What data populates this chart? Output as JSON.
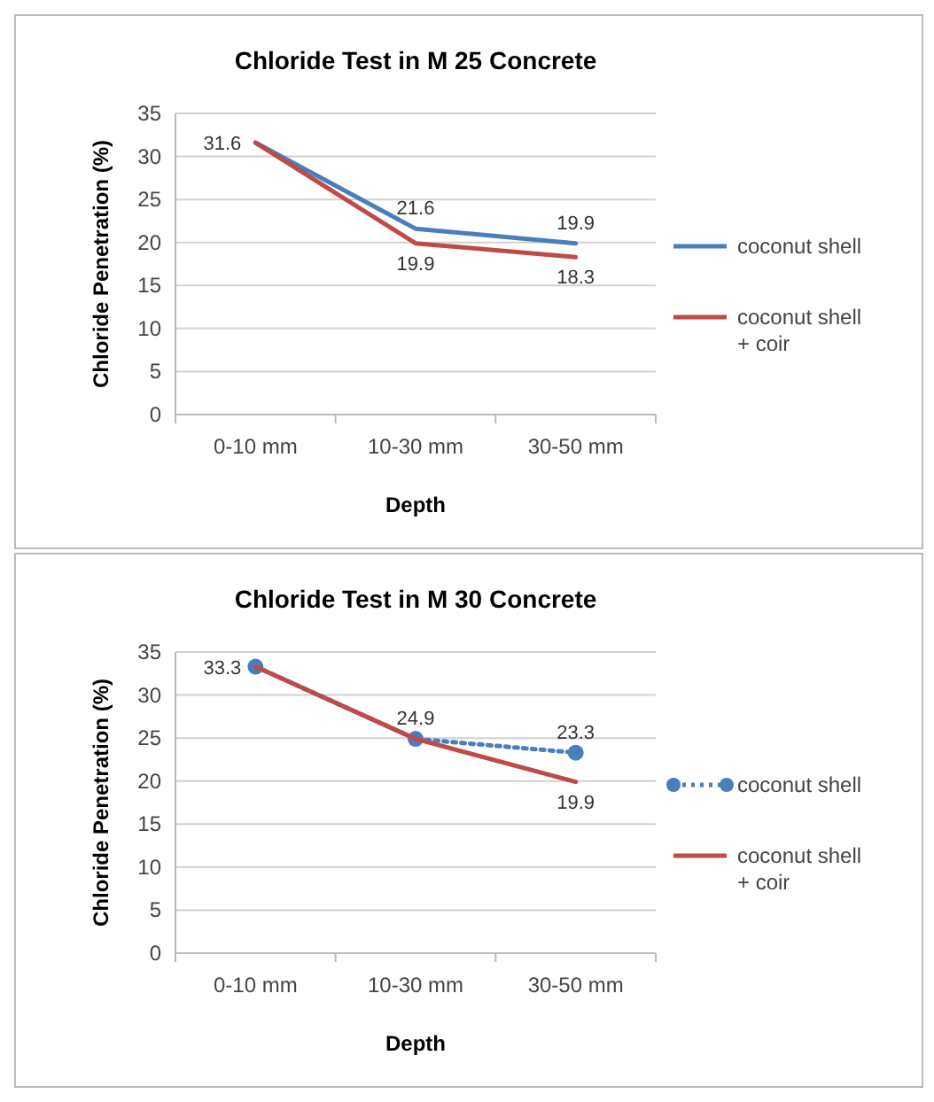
{
  "chart_data": [
    {
      "type": "line",
      "title": "Chloride Test in M 25 Concrete",
      "xlabel": "Depth",
      "ylabel": "Chloride Penetration (%)",
      "categories": [
        "0-10 mm",
        "10-30 mm",
        "30-50 mm"
      ],
      "ylim": [
        0,
        35
      ],
      "yticks": [
        0,
        5,
        10,
        15,
        20,
        25,
        30,
        35
      ],
      "grid": "y",
      "legend": "right",
      "marker": "none",
      "line_style": "solid",
      "series": [
        {
          "name": "coconut shell",
          "color": "#4a7ebb",
          "values": [
            31.6,
            21.6,
            19.9
          ],
          "value_labels": [
            "31.6",
            "21.6",
            "19.9"
          ]
        },
        {
          "name": "coconut shell + coir",
          "color": "#be4b48",
          "values": [
            31.6,
            19.9,
            18.3
          ],
          "value_labels": [
            null,
            "19.9",
            "18.3"
          ]
        }
      ]
    },
    {
      "type": "line",
      "title": "Chloride Test in M 30 Concrete",
      "xlabel": "Depth",
      "ylabel": "Chloride Penetration (%)",
      "categories": [
        "0-10 mm",
        "10-30 mm",
        "30-50 mm"
      ],
      "ylim": [
        0,
        35
      ],
      "yticks": [
        0,
        5,
        10,
        15,
        20,
        25,
        30,
        35
      ],
      "grid": "y",
      "legend": "right",
      "series": [
        {
          "name": "coconut shell",
          "color": "#4a7ebb",
          "values": [
            33.3,
            24.9,
            23.3
          ],
          "value_labels": [
            "33.3",
            "24.9",
            "23.3"
          ],
          "marker": "circle",
          "line_style": "dotted"
        },
        {
          "name": "coconut shell + coir",
          "color": "#be4b48",
          "values": [
            33.3,
            24.9,
            19.9
          ],
          "value_labels": [
            null,
            null,
            "19.9"
          ],
          "marker": "none",
          "line_style": "solid"
        }
      ]
    }
  ]
}
